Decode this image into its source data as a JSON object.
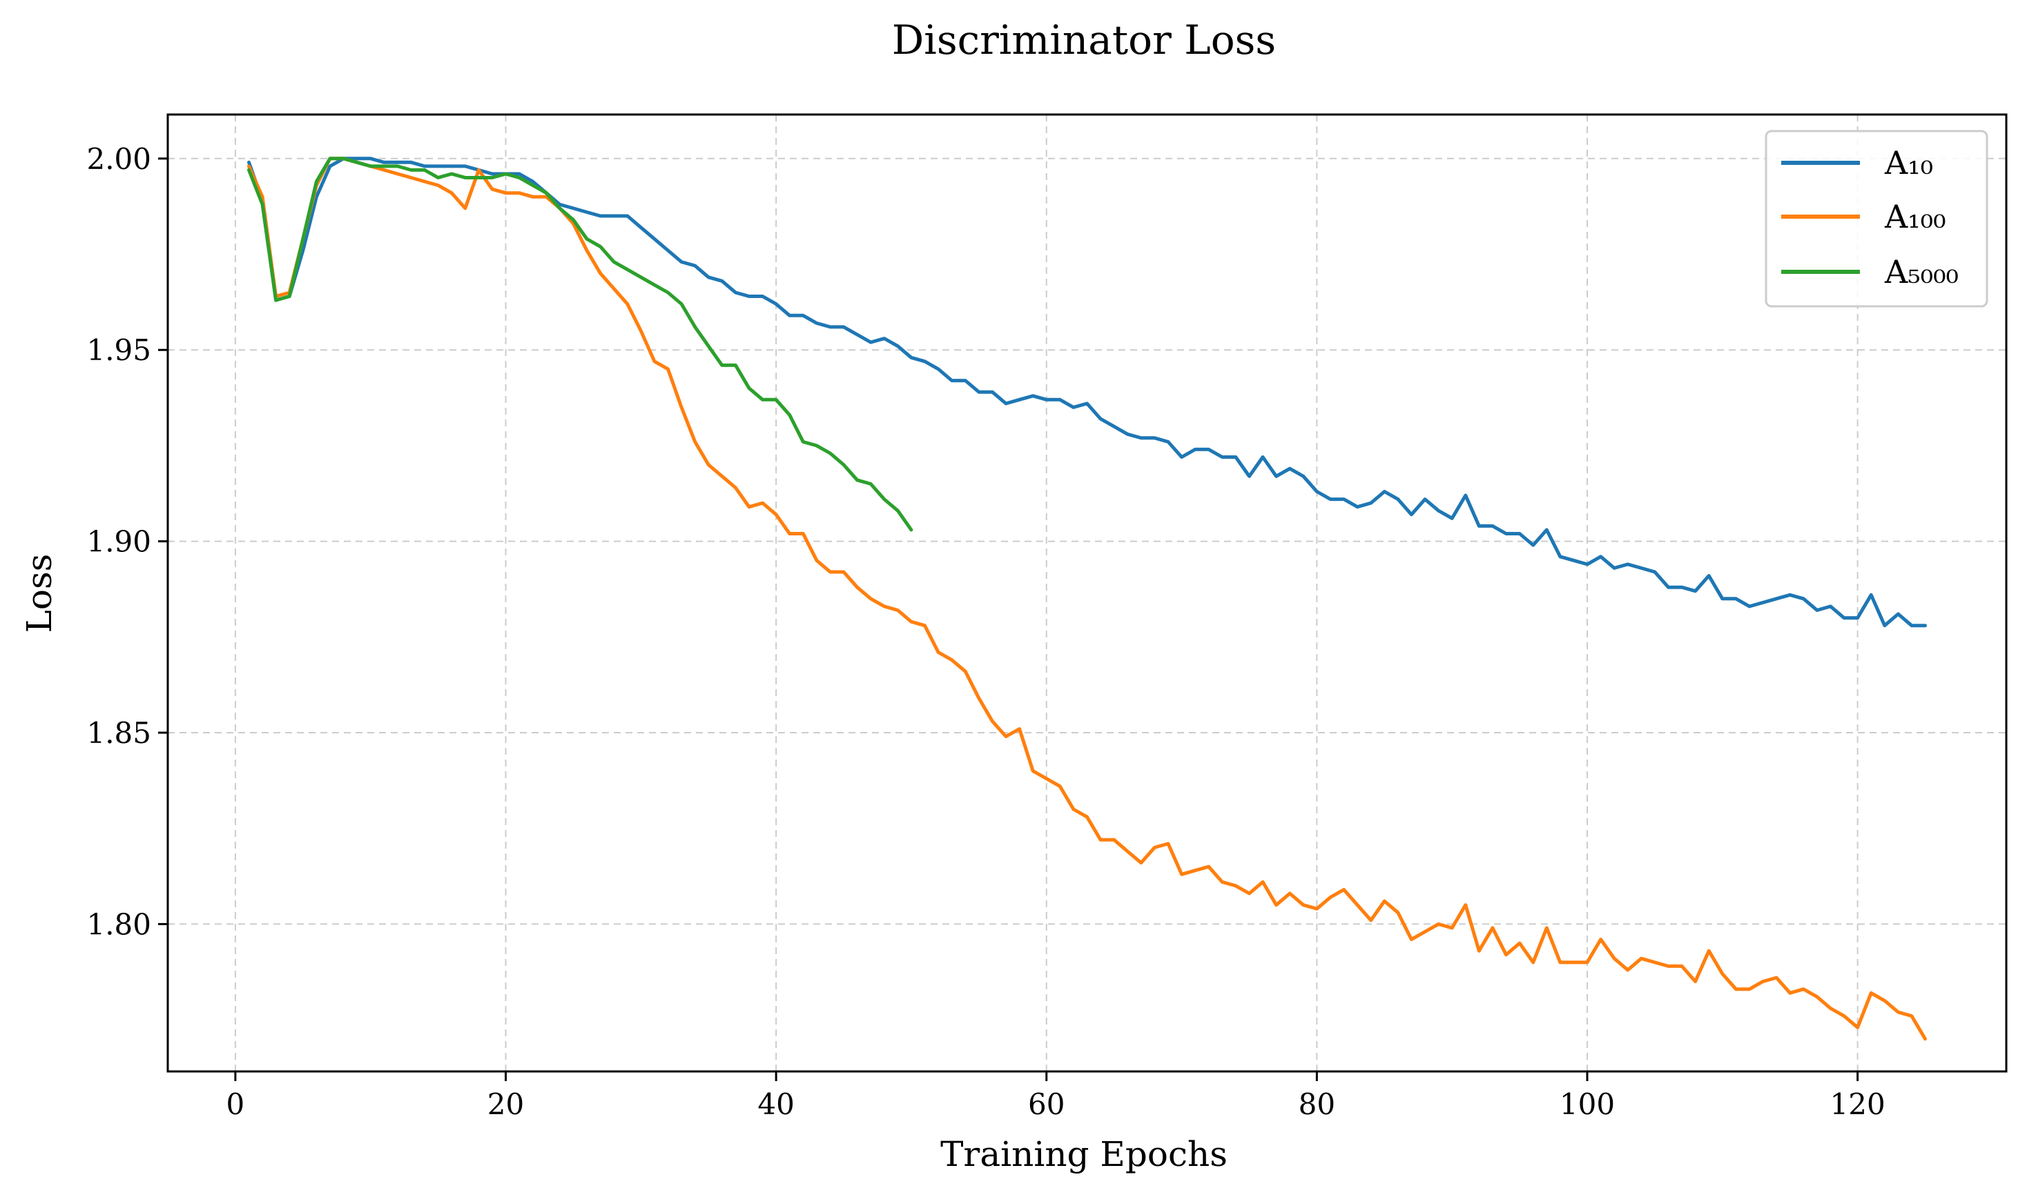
{
  "chart_data": {
    "type": "line",
    "title": "Discriminator Loss",
    "xlabel": "Training Epochs",
    "ylabel": "Loss",
    "xlim": [
      -5,
      131
    ],
    "ylim": [
      1.7615,
      2.0115
    ],
    "xticks": [
      0,
      20,
      40,
      60,
      80,
      100,
      120
    ],
    "xtick_labels": [
      "0",
      "20",
      "40",
      "60",
      "80",
      "100",
      "120"
    ],
    "yticks": [
      1.8,
      1.85,
      1.9,
      1.95,
      2.0
    ],
    "ytick_labels": [
      "1.80",
      "1.85",
      "1.90",
      "1.95",
      "2.00"
    ],
    "grid": true,
    "grid_style": "dashed",
    "legend_position": "top-right",
    "series": [
      {
        "name": "A₁₀",
        "color": "#1f77b4",
        "x": [
          1,
          2,
          3,
          4,
          5,
          6,
          7,
          8,
          9,
          10,
          11,
          12,
          13,
          14,
          15,
          16,
          17,
          18,
          19,
          20,
          21,
          22,
          23,
          24,
          25,
          26,
          27,
          28,
          29,
          30,
          31,
          32,
          33,
          34,
          35,
          36,
          37,
          38,
          39,
          40,
          41,
          42,
          43,
          44,
          45,
          46,
          47,
          48,
          49,
          50,
          51,
          52,
          53,
          54,
          55,
          56,
          57,
          58,
          59,
          60,
          61,
          62,
          63,
          64,
          65,
          66,
          67,
          68,
          69,
          70,
          71,
          72,
          73,
          74,
          75,
          76,
          77,
          78,
          79,
          80,
          81,
          82,
          83,
          84,
          85,
          86,
          87,
          88,
          89,
          90,
          91,
          92,
          93,
          94,
          95,
          96,
          97,
          98,
          99,
          100,
          101,
          102,
          103,
          104,
          105,
          106,
          107,
          108,
          109,
          110,
          111,
          112,
          113,
          114,
          115,
          116,
          117,
          118,
          119,
          120,
          121,
          122,
          123,
          124,
          125
        ],
        "values": [
          1.999,
          1.989,
          1.963,
          1.964,
          1.976,
          1.99,
          1.998,
          2.0,
          2.0,
          2.0,
          1.999,
          1.999,
          1.999,
          1.998,
          1.998,
          1.998,
          1.998,
          1.997,
          1.996,
          1.996,
          1.996,
          1.994,
          1.991,
          1.988,
          1.987,
          1.986,
          1.985,
          1.985,
          1.985,
          1.982,
          1.979,
          1.976,
          1.973,
          1.972,
          1.969,
          1.968,
          1.965,
          1.964,
          1.964,
          1.962,
          1.959,
          1.959,
          1.957,
          1.956,
          1.956,
          1.954,
          1.952,
          1.953,
          1.951,
          1.948,
          1.947,
          1.945,
          1.942,
          1.942,
          1.939,
          1.939,
          1.936,
          1.937,
          1.938,
          1.937,
          1.937,
          1.935,
          1.936,
          1.932,
          1.93,
          1.928,
          1.927,
          1.927,
          1.926,
          1.922,
          1.924,
          1.924,
          1.922,
          1.922,
          1.917,
          1.922,
          1.917,
          1.919,
          1.917,
          1.913,
          1.911,
          1.911,
          1.909,
          1.91,
          1.913,
          1.911,
          1.907,
          1.911,
          1.908,
          1.906,
          1.912,
          1.904,
          1.904,
          1.902,
          1.902,
          1.899,
          1.903,
          1.896,
          1.895,
          1.894,
          1.896,
          1.893,
          1.894,
          1.893,
          1.892,
          1.888,
          1.888,
          1.887,
          1.891,
          1.885,
          1.885,
          1.883,
          1.884,
          1.885,
          1.886,
          1.885,
          1.882,
          1.883,
          1.88,
          1.88,
          1.886,
          1.878,
          1.881,
          1.878,
          1.878
        ]
      },
      {
        "name": "A₁₀₀",
        "color": "#ff7f0e",
        "x": [
          1,
          2,
          3,
          4,
          5,
          6,
          7,
          8,
          9,
          10,
          11,
          12,
          13,
          14,
          15,
          16,
          17,
          18,
          19,
          20,
          21,
          22,
          23,
          24,
          25,
          26,
          27,
          28,
          29,
          30,
          31,
          32,
          33,
          34,
          35,
          36,
          37,
          38,
          39,
          40,
          41,
          42,
          43,
          44,
          45,
          46,
          47,
          48,
          49,
          50,
          51,
          52,
          53,
          54,
          55,
          56,
          57,
          58,
          59,
          60,
          61,
          62,
          63,
          64,
          65,
          66,
          67,
          68,
          69,
          70,
          71,
          72,
          73,
          74,
          75,
          76,
          77,
          78,
          79,
          80,
          81,
          82,
          83,
          84,
          85,
          86,
          87,
          88,
          89,
          90,
          91,
          92,
          93,
          94,
          95,
          96,
          97,
          98,
          99,
          100,
          101,
          102,
          103,
          104,
          105,
          106,
          107,
          108,
          109,
          110,
          111,
          112,
          113,
          114,
          115,
          116,
          117,
          118,
          119,
          120,
          121,
          122,
          123,
          124,
          125
        ],
        "values": [
          1.998,
          1.99,
          1.964,
          1.965,
          1.979,
          1.993,
          2.0,
          2.0,
          1.999,
          1.998,
          1.997,
          1.996,
          1.995,
          1.994,
          1.993,
          1.991,
          1.987,
          1.997,
          1.992,
          1.991,
          1.991,
          1.99,
          1.99,
          1.987,
          1.983,
          1.976,
          1.97,
          1.966,
          1.962,
          1.955,
          1.947,
          1.945,
          1.935,
          1.926,
          1.92,
          1.917,
          1.914,
          1.909,
          1.91,
          1.907,
          1.902,
          1.902,
          1.895,
          1.892,
          1.892,
          1.888,
          1.885,
          1.883,
          1.882,
          1.879,
          1.878,
          1.871,
          1.869,
          1.866,
          1.859,
          1.853,
          1.849,
          1.851,
          1.84,
          1.838,
          1.836,
          1.83,
          1.828,
          1.822,
          1.822,
          1.819,
          1.816,
          1.82,
          1.821,
          1.813,
          1.814,
          1.815,
          1.811,
          1.81,
          1.808,
          1.811,
          1.805,
          1.808,
          1.805,
          1.804,
          1.807,
          1.809,
          1.805,
          1.801,
          1.806,
          1.803,
          1.796,
          1.798,
          1.8,
          1.799,
          1.805,
          1.793,
          1.799,
          1.792,
          1.795,
          1.79,
          1.799,
          1.79,
          1.79,
          1.79,
          1.796,
          1.791,
          1.788,
          1.791,
          1.79,
          1.789,
          1.789,
          1.785,
          1.793,
          1.787,
          1.783,
          1.783,
          1.785,
          1.786,
          1.782,
          1.783,
          1.781,
          1.778,
          1.776,
          1.773,
          1.782,
          1.78,
          1.777,
          1.776,
          1.77
        ]
      },
      {
        "name": "A₅₀₀₀",
        "color": "#2ca02c",
        "x": [
          1,
          2,
          3,
          4,
          5,
          6,
          7,
          8,
          9,
          10,
          11,
          12,
          13,
          14,
          15,
          16,
          17,
          18,
          19,
          20,
          21,
          22,
          23,
          24,
          25,
          26,
          27,
          28,
          29,
          30,
          31,
          32,
          33,
          34,
          35,
          36,
          37,
          38,
          39,
          40,
          41,
          42,
          43,
          44,
          45,
          46,
          47,
          48,
          49,
          50
        ],
        "values": [
          1.997,
          1.988,
          1.963,
          1.964,
          1.979,
          1.994,
          2.0,
          2.0,
          1.999,
          1.998,
          1.998,
          1.998,
          1.997,
          1.997,
          1.995,
          1.996,
          1.995,
          1.995,
          1.995,
          1.996,
          1.995,
          1.993,
          1.991,
          1.987,
          1.984,
          1.979,
          1.977,
          1.973,
          1.971,
          1.969,
          1.967,
          1.965,
          1.962,
          1.956,
          1.951,
          1.946,
          1.946,
          1.94,
          1.937,
          1.937,
          1.933,
          1.926,
          1.925,
          1.923,
          1.92,
          1.916,
          1.915,
          1.911,
          1.908,
          1.903
        ]
      }
    ]
  }
}
